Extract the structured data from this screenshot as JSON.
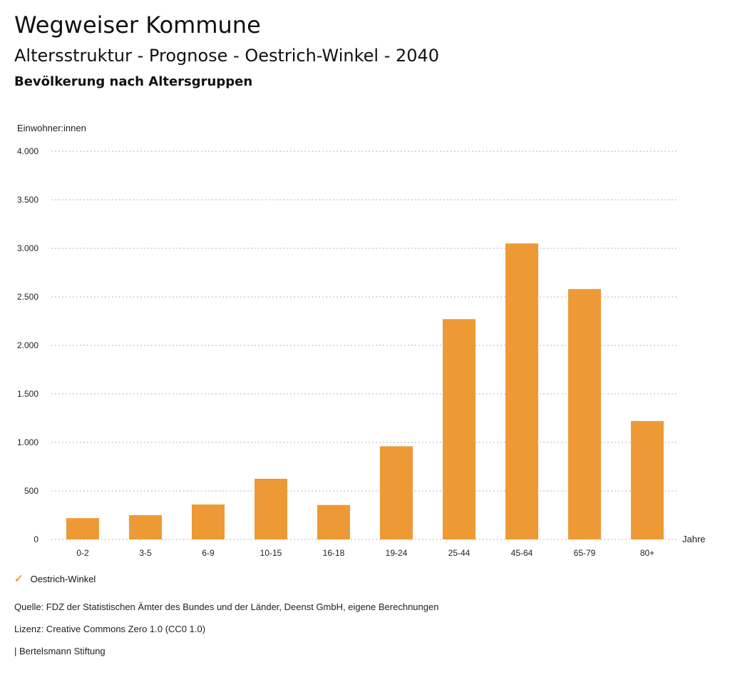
{
  "header": {
    "title": "Wegweiser Kommune",
    "subtitle": "Altersstruktur - Prognose - Oestrich-Winkel - 2040",
    "section": "Bevölkerung nach Altersgruppen"
  },
  "chart_data": {
    "type": "bar",
    "ylabel": "Einwohner:innen",
    "xlabel": "Jahre",
    "categories": [
      "0-2",
      "3-5",
      "6-9",
      "10-15",
      "16-18",
      "19-24",
      "25-44",
      "45-64",
      "65-79",
      "80+"
    ],
    "series": [
      {
        "name": "Oestrich-Winkel",
        "values": [
          220,
          250,
          360,
          625,
          355,
          960,
          2270,
          3050,
          2580,
          1220
        ],
        "color": "#ed9a36"
      }
    ],
    "ylim": [
      0,
      4000
    ],
    "yticks": [
      0,
      500,
      1000,
      1500,
      2000,
      2500,
      3000,
      3500,
      4000
    ],
    "ytick_labels": [
      "0",
      "500",
      "1.000",
      "1.500",
      "2.000",
      "2.500",
      "3.000",
      "3.500",
      "4.000"
    ],
    "grid": true,
    "legend_position": "bottom-left"
  },
  "legend": {
    "label": "Oestrich-Winkel"
  },
  "footer": {
    "source": "Quelle: FDZ der Statistischen Ämter des Bundes und der Länder, Deenst GmbH, eigene Berechnungen",
    "license": "Lizenz: Creative Commons Zero 1.0 (CC0 1.0)",
    "publisher": "| Bertelsmann Stiftung"
  }
}
